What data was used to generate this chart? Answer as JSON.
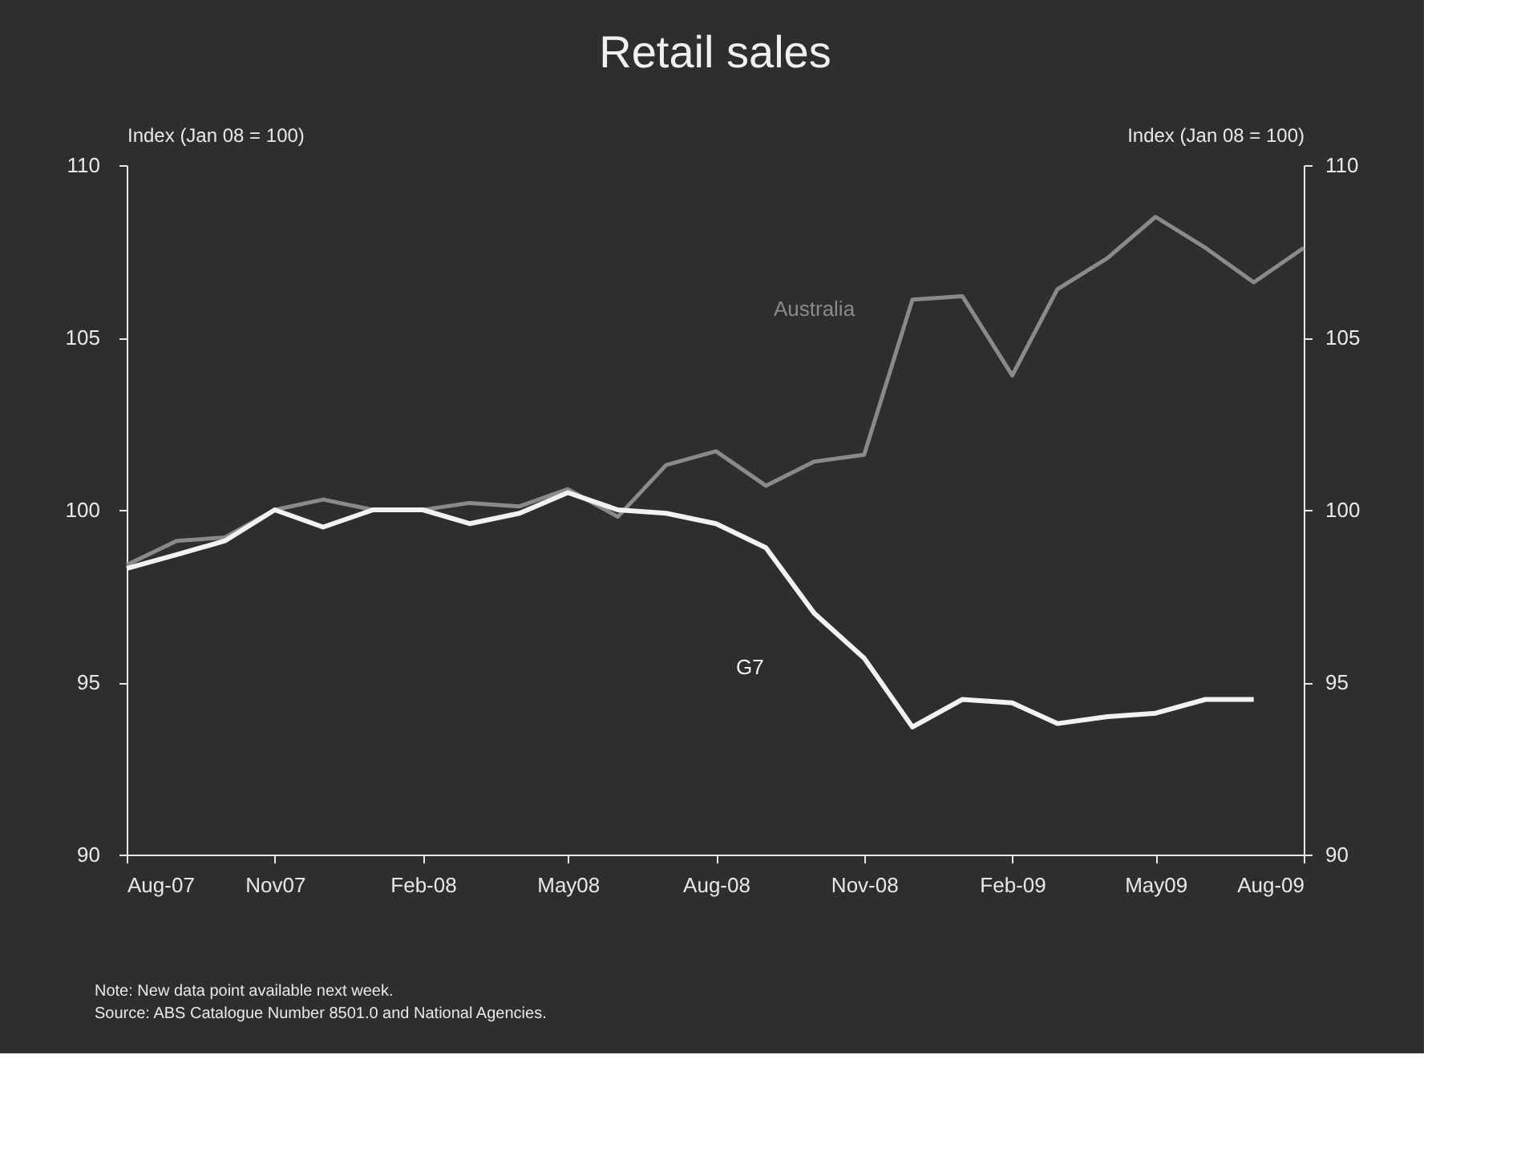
{
  "chart_data": {
    "type": "line",
    "title": "Retail sales",
    "ylabel": "Index (Jan 08 = 100)",
    "y2label": "Index (Jan 08 = 100)",
    "x": [
      "2007-08",
      "2007-09",
      "2007-10",
      "2007-11",
      "2007-12",
      "2008-01",
      "2008-02",
      "2008-03",
      "2008-04",
      "2008-05",
      "2008-06",
      "2008-07",
      "2008-08",
      "2008-09",
      "2008-10",
      "2008-11",
      "2008-12",
      "2009-01",
      "2009-02",
      "2009-03",
      "2009-04",
      "2009-05",
      "2009-06",
      "2009-07",
      "2009-08"
    ],
    "series": [
      {
        "name": "Australia",
        "color": "#8a8a8a",
        "values": [
          98.4,
          99.1,
          99.2,
          100.0,
          100.3,
          100.0,
          100.0,
          100.2,
          100.1,
          100.6,
          99.8,
          101.3,
          101.7,
          100.7,
          101.4,
          101.6,
          106.1,
          106.2,
          103.9,
          106.4,
          107.3,
          108.5,
          107.6,
          106.6,
          107.6
        ]
      },
      {
        "name": "G7",
        "color": "#f2f2f2",
        "values": [
          98.3,
          98.7,
          99.1,
          100.0,
          99.5,
          100.0,
          100.0,
          99.6,
          99.9,
          100.5,
          100.0,
          99.9,
          99.6,
          98.9,
          97.0,
          95.7,
          93.7,
          94.5,
          94.4,
          93.8,
          94.0,
          94.1,
          94.5,
          94.5,
          null
        ]
      }
    ],
    "xlim": [
      "2007-08",
      "2009-08"
    ],
    "xticks": [
      {
        "value": "2007-08",
        "label": "Aug-07"
      },
      {
        "value": "2007-11",
        "label": "Nov07"
      },
      {
        "value": "2008-02",
        "label": "Feb-08"
      },
      {
        "value": "2008-05",
        "label": "May08"
      },
      {
        "value": "2008-08",
        "label": "Aug-08"
      },
      {
        "value": "2008-11",
        "label": "Nov-08"
      },
      {
        "value": "2009-02",
        "label": "Feb-09"
      },
      {
        "value": "2009-05",
        "label": "May09"
      },
      {
        "value": "2009-08",
        "label": "Aug-09"
      }
    ],
    "ylim": [
      90,
      110
    ],
    "yticks": [
      90,
      95,
      100,
      105,
      110
    ],
    "y2lim": [
      90,
      110
    ],
    "y2ticks": [
      90,
      95,
      100,
      105,
      110
    ],
    "grid": false,
    "legend": false,
    "marker": "none",
    "line_style": "solid",
    "annotations": [
      "Note: New data point available next week.",
      "Source: ABS Catalogue Number 8501.0 and National Agencies."
    ]
  }
}
